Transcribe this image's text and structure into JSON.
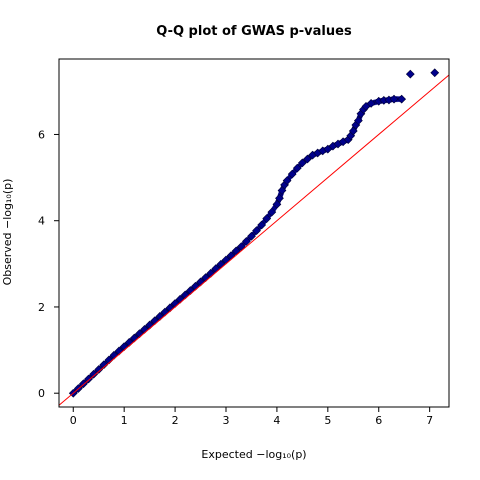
{
  "chart_data": {
    "type": "scatter",
    "title": "Q-Q plot of GWAS p-values",
    "xlabel": "Expected  −log₁₀(p)",
    "ylabel": "Observed  −log₁₀(p)",
    "xlim": [
      -0.28,
      7.38
    ],
    "ylim": [
      -0.32,
      7.75
    ],
    "xticks": [
      0,
      1,
      2,
      3,
      4,
      5,
      6,
      7
    ],
    "yticks": [
      0,
      2,
      4,
      6
    ],
    "grid": false,
    "colors": {
      "points_fill": "#00008b",
      "points_edge": "#000033",
      "reference_line": "#ff0000"
    },
    "reference_line": {
      "label": "",
      "points": [
        [
          -0.28,
          -0.28
        ],
        [
          7.38,
          7.38
        ]
      ]
    },
    "series": [
      {
        "marker": "diamond",
        "points": [
          [
            0.0,
            0.0
          ],
          [
            0.1,
            0.11
          ],
          [
            0.2,
            0.22
          ],
          [
            0.3,
            0.33
          ],
          [
            0.4,
            0.44
          ],
          [
            0.5,
            0.55
          ],
          [
            0.6,
            0.66
          ],
          [
            0.7,
            0.77
          ],
          [
            0.8,
            0.88
          ],
          [
            0.9,
            0.98
          ],
          [
            1.0,
            1.08
          ],
          [
            1.1,
            1.18
          ],
          [
            1.2,
            1.28
          ],
          [
            1.3,
            1.38
          ],
          [
            1.4,
            1.48
          ],
          [
            1.5,
            1.58
          ],
          [
            1.6,
            1.68
          ],
          [
            1.7,
            1.78
          ],
          [
            1.8,
            1.88
          ],
          [
            1.9,
            1.98
          ],
          [
            2.0,
            2.08
          ],
          [
            2.1,
            2.18
          ],
          [
            2.2,
            2.28
          ],
          [
            2.3,
            2.38
          ],
          [
            2.4,
            2.48
          ],
          [
            2.5,
            2.58
          ],
          [
            2.6,
            2.68
          ],
          [
            2.7,
            2.78
          ],
          [
            2.8,
            2.89
          ],
          [
            2.9,
            2.99
          ],
          [
            3.0,
            3.09
          ],
          [
            3.1,
            3.19
          ],
          [
            3.2,
            3.3
          ],
          [
            3.3,
            3.4
          ],
          [
            3.4,
            3.52
          ],
          [
            3.5,
            3.64
          ],
          [
            3.6,
            3.77
          ],
          [
            3.7,
            3.9
          ],
          [
            3.8,
            4.05
          ],
          [
            3.9,
            4.2
          ],
          [
            4.0,
            4.38
          ],
          [
            4.05,
            4.52
          ],
          [
            4.1,
            4.7
          ],
          [
            4.15,
            4.83
          ],
          [
            4.2,
            4.93
          ],
          [
            4.3,
            5.08
          ],
          [
            4.4,
            5.22
          ],
          [
            4.5,
            5.34
          ],
          [
            4.6,
            5.43
          ],
          [
            4.7,
            5.52
          ],
          [
            4.8,
            5.57
          ],
          [
            4.9,
            5.62
          ],
          [
            5.0,
            5.66
          ],
          [
            5.1,
            5.73
          ],
          [
            5.2,
            5.78
          ],
          [
            5.3,
            5.83
          ],
          [
            5.4,
            5.88
          ],
          [
            5.45,
            5.97
          ],
          [
            5.5,
            6.08
          ],
          [
            5.55,
            6.22
          ],
          [
            5.6,
            6.32
          ],
          [
            5.65,
            6.48
          ],
          [
            5.7,
            6.58
          ],
          [
            5.75,
            6.65
          ],
          [
            5.85,
            6.72
          ],
          [
            6.0,
            6.77
          ],
          [
            6.1,
            6.79
          ],
          [
            6.2,
            6.8
          ],
          [
            6.3,
            6.82
          ],
          [
            6.45,
            6.82
          ],
          [
            6.62,
            7.4
          ],
          [
            7.1,
            7.43
          ]
        ]
      }
    ]
  }
}
